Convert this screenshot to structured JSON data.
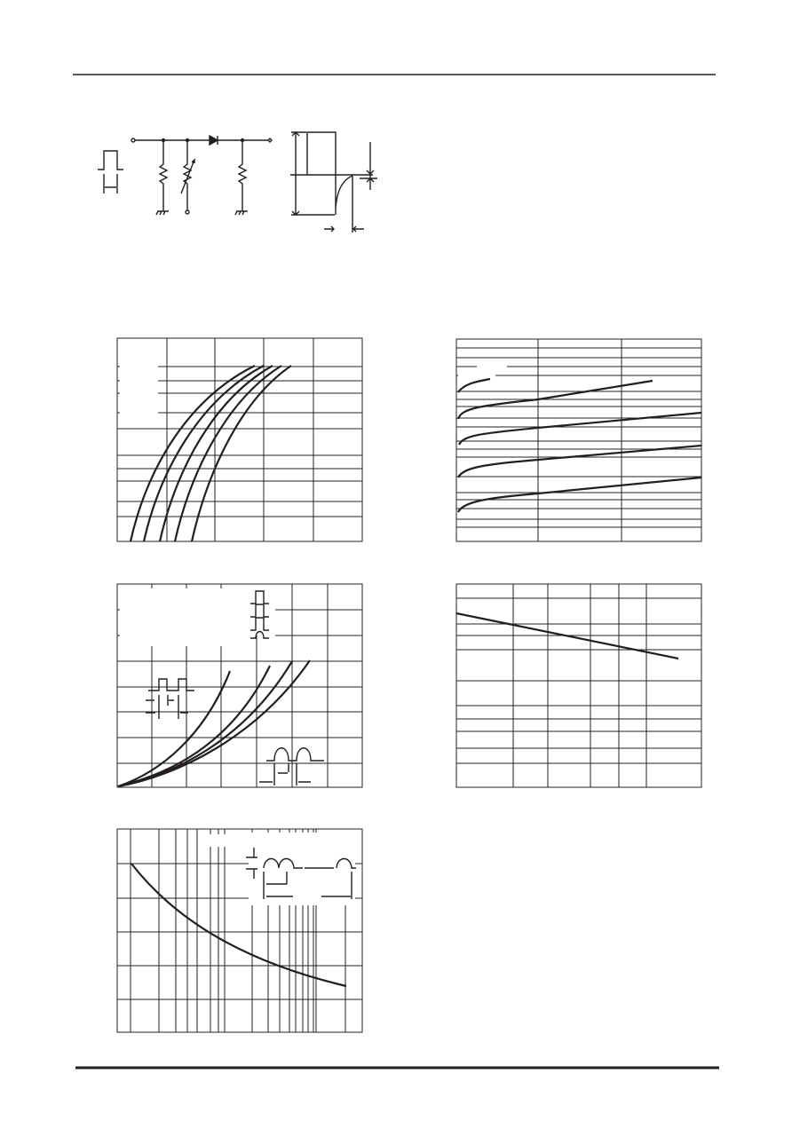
{
  "colors": {
    "ink": "#231f20",
    "background": "#ffffff"
  }
}
